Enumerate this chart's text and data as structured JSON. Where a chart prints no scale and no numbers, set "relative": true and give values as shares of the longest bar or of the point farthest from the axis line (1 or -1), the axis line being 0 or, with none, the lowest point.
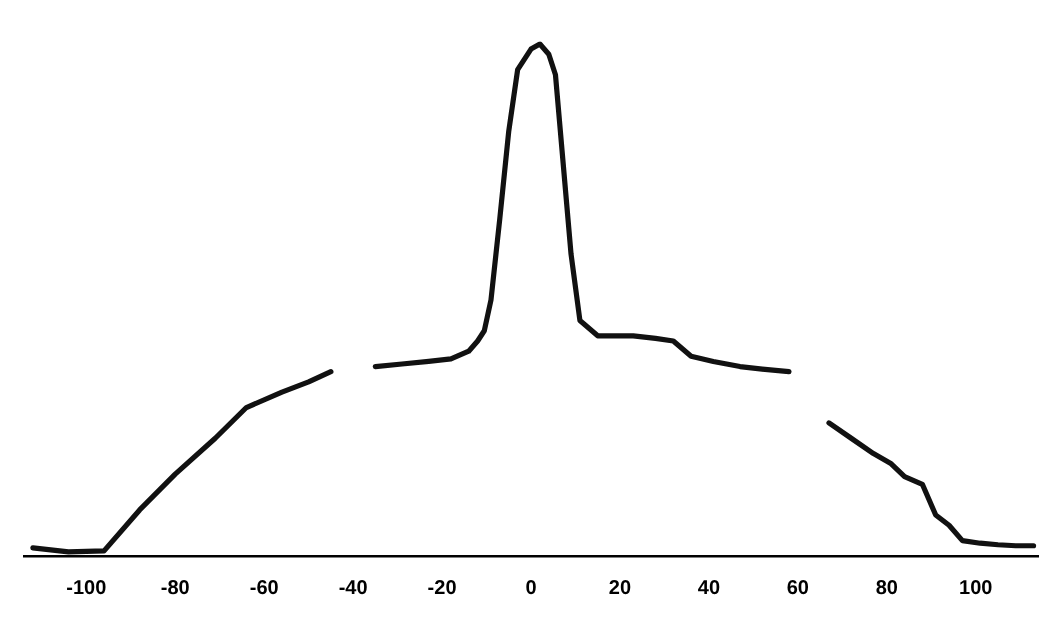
{
  "chart_data": {
    "type": "line",
    "relative": true,
    "xlim": [
      -114,
      114
    ],
    "xticks": [
      -100,
      -80,
      -60,
      -40,
      -20,
      0,
      20,
      40,
      60,
      80,
      100
    ],
    "grid": false,
    "legend": false,
    "marker": "none",
    "line_style": "solid",
    "series": [
      {
        "color": "#111111",
        "x": [
          -112,
          -104,
          -96,
          -88,
          -80,
          -71,
          -64,
          -56,
          -50,
          -45,
          -40,
          -35,
          -29,
          -23,
          -18,
          -14,
          -12,
          -10.5,
          -9,
          -7,
          -5,
          -3,
          0,
          2,
          4,
          5.5,
          7,
          9,
          11,
          15,
          19,
          23,
          28,
          32,
          36,
          41,
          47,
          52,
          58,
          62,
          67,
          72,
          77,
          81,
          84,
          88,
          91,
          94,
          97,
          101,
          105,
          109,
          113
        ],
        "values": [
          0.016,
          0.008,
          0.01,
          0.09,
          0.16,
          0.23,
          0.29,
          0.32,
          0.34,
          0.36,
          null,
          0.37,
          0.375,
          0.38,
          0.385,
          0.4,
          0.42,
          0.44,
          0.5,
          0.66,
          0.83,
          0.95,
          0.99,
          1.0,
          0.98,
          0.94,
          0.79,
          0.59,
          0.46,
          0.43,
          0.43,
          0.43,
          0.425,
          0.42,
          0.39,
          0.38,
          0.37,
          0.365,
          0.36,
          null,
          0.26,
          0.23,
          0.2,
          0.18,
          0.155,
          0.14,
          0.08,
          0.06,
          0.03,
          0.025,
          0.022,
          0.02,
          0.02
        ]
      }
    ]
  }
}
